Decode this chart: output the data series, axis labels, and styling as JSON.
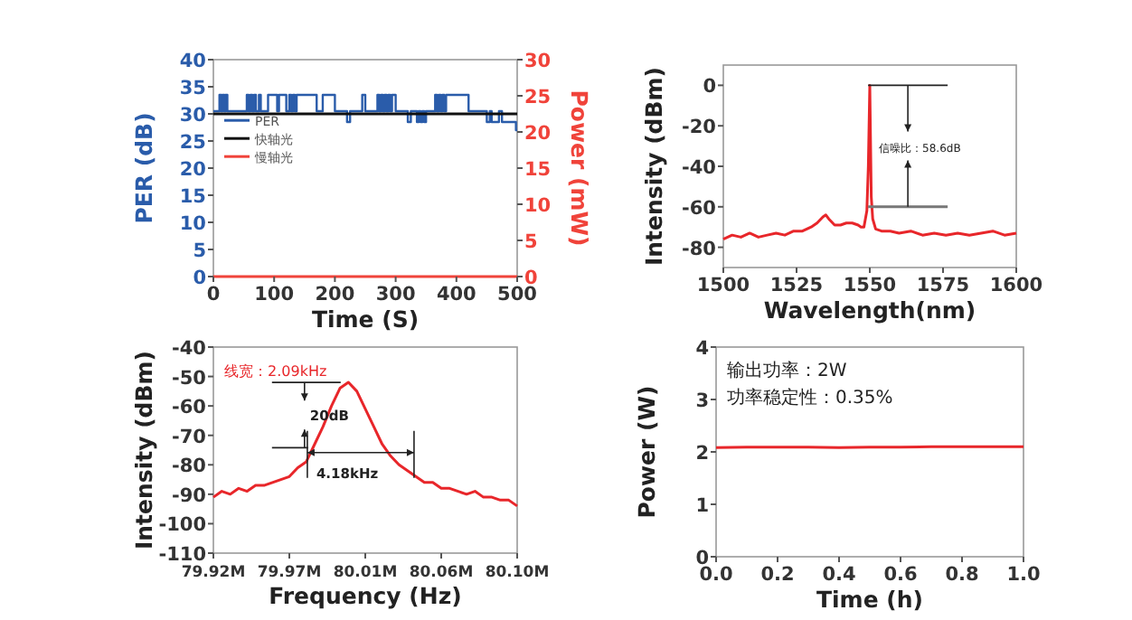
{
  "chart_data": [
    {
      "type": "line",
      "xlabel": "Time (S)",
      "ylabel": "PER (dB)",
      "y2label": "Power (mW)",
      "xlim": [
        0,
        500
      ],
      "xticks": [
        0,
        100,
        200,
        300,
        400,
        500
      ],
      "ylim": [
        0,
        40
      ],
      "yticks": [
        0,
        5,
        10,
        15,
        20,
        25,
        30,
        35,
        40
      ],
      "y2lim": [
        0,
        30
      ],
      "y2ticks": [
        0,
        5,
        10,
        15,
        20,
        25,
        30
      ],
      "legend": "left",
      "series": [
        {
          "name": "PER",
          "type": "step",
          "color": "#2a5caa",
          "x": [
            0,
            10,
            13,
            15,
            18,
            20,
            23,
            55,
            58,
            61,
            64,
            67,
            70,
            75,
            78,
            90,
            105,
            108,
            120,
            125,
            128,
            131,
            134,
            137,
            170,
            180,
            200,
            220,
            225,
            245,
            250,
            270,
            273,
            276,
            279,
            282,
            285,
            288,
            291,
            294,
            300,
            320,
            325,
            335,
            338,
            341,
            344,
            347,
            350,
            365,
            368,
            371,
            374,
            377,
            380,
            383,
            420,
            450,
            455,
            458,
            470,
            475,
            498,
            500
          ],
          "values": [
            30.5,
            33.5,
            30.5,
            33.5,
            30.5,
            33.5,
            30.5,
            33.5,
            30.5,
            33.5,
            30.5,
            33.5,
            30.5,
            33.5,
            30.5,
            33.5,
            30.5,
            33.5,
            30.5,
            33.5,
            30.5,
            33.5,
            30.5,
            33.5,
            30.5,
            33.5,
            30.5,
            28.5,
            30.5,
            33.5,
            30.5,
            33.5,
            30.5,
            33.5,
            30.5,
            33.5,
            30.5,
            33.5,
            30.5,
            33.5,
            30.5,
            28.5,
            30.5,
            28.5,
            30.5,
            28.5,
            30.5,
            28.5,
            30.5,
            33.5,
            30.5,
            33.5,
            30.5,
            33.5,
            30.5,
            33.5,
            30.5,
            28.5,
            30.5,
            28.5,
            30.5,
            28.5,
            27,
            27
          ]
        },
        {
          "name": "快轴光",
          "axis": "y2",
          "color": "#111111",
          "x": [
            0,
            500
          ],
          "values": [
            22.5,
            22.5
          ]
        },
        {
          "name": "慢轴光",
          "axis": "y2",
          "color": "#f0433a",
          "x": [
            0,
            500
          ],
          "values": [
            0,
            0
          ]
        }
      ]
    },
    {
      "type": "line",
      "xlabel": "Wavelength(nm)",
      "ylabel": "Intensity (dBm)",
      "xlim": [
        1500,
        1600
      ],
      "xticks": [
        1500,
        1525,
        1550,
        1575,
        1600
      ],
      "ylim": [
        -90,
        10
      ],
      "yticks": [
        -80,
        -60,
        -40,
        -20,
        0
      ],
      "annotations": [
        "信噪比：58.6dB"
      ],
      "series": [
        {
          "color": "#e8262a",
          "x": [
            1500,
            1503,
            1506,
            1509,
            1512,
            1515,
            1518,
            1521,
            1524,
            1527,
            1530,
            1532,
            1534,
            1535,
            1536,
            1538,
            1540,
            1542,
            1544,
            1546,
            1547,
            1548,
            1549,
            1549.5,
            1550,
            1550.5,
            1551,
            1552,
            1554,
            1557,
            1560,
            1564,
            1568,
            1572,
            1576,
            1580,
            1584,
            1588,
            1592,
            1596,
            1600
          ],
          "values": [
            -76,
            -74,
            -75,
            -73,
            -75,
            -74,
            -73,
            -74,
            -72,
            -72,
            -70,
            -68,
            -65,
            -64,
            -66,
            -69,
            -69,
            -68,
            -68,
            -69,
            -70,
            -70,
            -62,
            -40,
            0,
            -55,
            -66,
            -71,
            -72,
            -72,
            -73,
            -72,
            -74,
            -73,
            -74,
            -73,
            -74,
            -73,
            -72,
            -74,
            -73
          ]
        }
      ]
    },
    {
      "type": "line",
      "xlabel": "Frequency (Hz)",
      "ylabel": "Intensity (dBm)",
      "xlim": [
        79.92,
        80.1
      ],
      "xticks": [
        {
          "value": 79.92,
          "label": "79.92M"
        },
        {
          "value": 79.965,
          "label": "79.97M"
        },
        {
          "value": 80.01,
          "label": "80.01M"
        },
        {
          "value": 80.055,
          "label": "80.06M"
        },
        {
          "value": 80.1,
          "label": "80.10M"
        }
      ],
      "ylim": [
        -110,
        -40
      ],
      "yticks": [
        -110,
        -100,
        -90,
        -80,
        -70,
        -60,
        -50,
        -40
      ],
      "annotations": [
        "线宽：2.09kHz",
        "20dB",
        "4.18kHz"
      ],
      "series": [
        {
          "color": "#e8262a",
          "x": [
            79.92,
            79.925,
            79.93,
            79.935,
            79.94,
            79.945,
            79.95,
            79.955,
            79.96,
            79.965,
            79.97,
            79.975,
            79.98,
            79.985,
            79.99,
            79.995,
            80.0,
            80.005,
            80.01,
            80.015,
            80.02,
            80.025,
            80.03,
            80.035,
            80.04,
            80.045,
            80.05,
            80.055,
            80.06,
            80.065,
            80.07,
            80.075,
            80.08,
            80.085,
            80.09,
            80.095,
            80.1
          ],
          "values": [
            -91,
            -89,
            -90,
            -88,
            -89,
            -87,
            -87,
            -86,
            -85,
            -84,
            -81,
            -79,
            -73,
            -67,
            -60,
            -54,
            -52,
            -55,
            -61,
            -67,
            -73,
            -77,
            -80,
            -82,
            -84,
            -86,
            -86,
            -88,
            -88,
            -89,
            -90,
            -89,
            -91,
            -91,
            -92,
            -92,
            -94
          ]
        }
      ]
    },
    {
      "type": "line",
      "xlabel": "Time (h)",
      "ylabel": "Power (W)",
      "xlim": [
        0,
        1
      ],
      "xticks": [
        {
          "value": 0,
          "label": "0.0"
        },
        0.2,
        0.4,
        0.6,
        0.8,
        {
          "value": 1,
          "label": "1.0"
        }
      ],
      "ylim": [
        0,
        4
      ],
      "yticks": [
        0,
        1,
        2,
        3,
        4
      ],
      "annotations": [
        "输出功率：2W",
        "功率稳定性：0.35%"
      ],
      "series": [
        {
          "color": "#e8262a",
          "x": [
            0,
            0.1,
            0.2,
            0.3,
            0.4,
            0.5,
            0.6,
            0.7,
            0.8,
            0.9,
            1
          ],
          "values": [
            2.08,
            2.09,
            2.09,
            2.09,
            2.08,
            2.09,
            2.09,
            2.1,
            2.1,
            2.1,
            2.1
          ]
        }
      ]
    }
  ]
}
